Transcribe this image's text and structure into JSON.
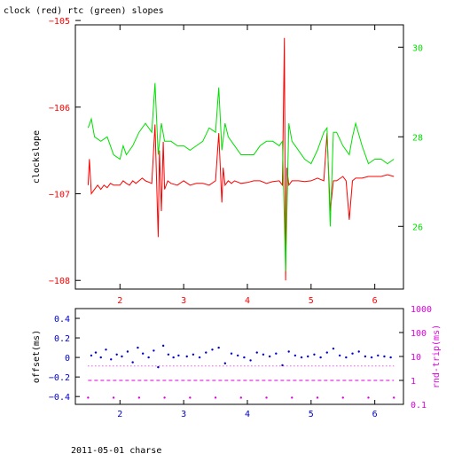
{
  "page": {
    "title": "clock (red) rtc (green) slopes",
    "footer": "2011-05-01 charse"
  },
  "colors": {
    "red": "#ff0000",
    "green": "#00e000",
    "blue": "#0000cc",
    "magenta": "#e000e0",
    "axis": "#000000"
  },
  "chart_data": [
    {
      "type": "line",
      "title": "clock (red) rtc (green) slopes",
      "ylabel": "clockslope",
      "xlim": [
        1.3,
        6.45
      ],
      "ylim": [
        -108.1,
        -105.05
      ],
      "y2lim": [
        24.6,
        30.5
      ],
      "x_ticks": [
        2,
        3,
        4,
        5,
        6
      ],
      "y_ticks": [
        -105,
        -106,
        -107,
        -108
      ],
      "y2_ticks": [
        30,
        28,
        26
      ],
      "grid": false,
      "series": [
        {
          "name": "clock",
          "axis": "left",
          "x": [
            1.5,
            1.52,
            1.55,
            1.6,
            1.65,
            1.7,
            1.75,
            1.8,
            1.85,
            1.9,
            2.0,
            2.05,
            2.1,
            2.15,
            2.2,
            2.25,
            2.3,
            2.35,
            2.4,
            2.5,
            2.55,
            2.6,
            2.62,
            2.65,
            2.68,
            2.7,
            2.75,
            2.8,
            2.9,
            3.0,
            3.1,
            3.2,
            3.3,
            3.4,
            3.5,
            3.55,
            3.6,
            3.62,
            3.65,
            3.7,
            3.75,
            3.8,
            3.9,
            4.0,
            4.1,
            4.2,
            4.3,
            4.4,
            4.5,
            4.55,
            4.58,
            4.6,
            4.62,
            4.65,
            4.7,
            4.8,
            4.9,
            5.0,
            5.1,
            5.2,
            5.25,
            5.3,
            5.35,
            5.4,
            5.5,
            5.55,
            5.6,
            5.65,
            5.7,
            5.8,
            5.9,
            6.0,
            6.1,
            6.2,
            6.3
          ],
          "y": [
            -106.9,
            -106.6,
            -107.0,
            -106.95,
            -106.9,
            -106.95,
            -106.9,
            -106.93,
            -106.88,
            -106.9,
            -106.9,
            -106.85,
            -106.88,
            -106.9,
            -106.85,
            -106.88,
            -106.85,
            -106.82,
            -106.85,
            -106.88,
            -106.2,
            -107.5,
            -106.5,
            -107.2,
            -106.4,
            -106.95,
            -106.85,
            -106.88,
            -106.9,
            -106.85,
            -106.9,
            -106.88,
            -106.88,
            -106.9,
            -106.85,
            -106.3,
            -107.1,
            -106.7,
            -106.9,
            -106.85,
            -106.88,
            -106.85,
            -106.88,
            -106.87,
            -106.85,
            -106.85,
            -106.88,
            -106.86,
            -106.85,
            -106.9,
            -105.2,
            -108.0,
            -106.7,
            -106.9,
            -106.85,
            -106.85,
            -106.86,
            -106.85,
            -106.82,
            -106.85,
            -106.3,
            -107.2,
            -106.85,
            -106.85,
            -106.8,
            -106.85,
            -107.3,
            -106.85,
            -106.82,
            -106.82,
            -106.8,
            -106.8,
            -106.8,
            -106.78,
            -106.8
          ],
          "color": "#ff0000"
        },
        {
          "name": "rtc",
          "axis": "right",
          "x": [
            1.5,
            1.55,
            1.6,
            1.7,
            1.8,
            1.9,
            2.0,
            2.05,
            2.1,
            2.2,
            2.3,
            2.4,
            2.5,
            2.55,
            2.6,
            2.65,
            2.7,
            2.8,
            2.9,
            3.0,
            3.1,
            3.2,
            3.3,
            3.4,
            3.5,
            3.55,
            3.6,
            3.65,
            3.7,
            3.8,
            3.9,
            4.0,
            4.1,
            4.2,
            4.3,
            4.4,
            4.5,
            4.55,
            4.6,
            4.65,
            4.7,
            4.8,
            4.9,
            5.0,
            5.1,
            5.2,
            5.25,
            5.3,
            5.35,
            5.4,
            5.5,
            5.55,
            5.6,
            5.65,
            5.7,
            5.8,
            5.9,
            6.0,
            6.1,
            6.2,
            6.3
          ],
          "y": [
            28.2,
            28.4,
            28.0,
            27.9,
            28.0,
            27.6,
            27.5,
            27.8,
            27.6,
            27.8,
            28.1,
            28.3,
            28.1,
            29.2,
            27.6,
            28.3,
            27.9,
            27.9,
            27.8,
            27.8,
            27.7,
            27.8,
            27.9,
            28.2,
            28.1,
            29.1,
            27.7,
            28.3,
            28.0,
            27.8,
            27.6,
            27.6,
            27.6,
            27.8,
            27.9,
            27.9,
            27.8,
            27.9,
            25.0,
            28.3,
            27.9,
            27.7,
            27.5,
            27.4,
            27.7,
            28.1,
            28.2,
            26.0,
            28.1,
            28.1,
            27.8,
            27.7,
            27.6,
            28.0,
            28.3,
            27.8,
            27.4,
            27.5,
            27.5,
            27.4,
            27.5
          ],
          "color": "#00e000"
        }
      ]
    },
    {
      "type": "scatter",
      "ylabel": "offset(ms)",
      "y2label": "rnd-trip(ms)",
      "xlim": [
        1.3,
        6.45
      ],
      "ylim": [
        -0.48,
        0.5
      ],
      "y2_log": true,
      "y2lim": [
        0.1,
        1000
      ],
      "x_ticks": [
        2,
        3,
        4,
        5,
        6
      ],
      "y_ticks": [
        0.4,
        0.2,
        0,
        -0.2,
        -0.4
      ],
      "y_tick_labels": [
        "0.4",
        "0.2",
        "0",
        "−0.2",
        "−0.4"
      ],
      "y2_ticks": [
        1000,
        100,
        10,
        1,
        0.1
      ],
      "grid": false,
      "series": [
        {
          "name": "offset",
          "axis": "left",
          "color": "#0000cc",
          "x": [
            1.55,
            1.62,
            1.7,
            1.78,
            1.86,
            1.95,
            2.03,
            2.12,
            2.2,
            2.28,
            2.36,
            2.45,
            2.53,
            2.6,
            2.68,
            2.76,
            2.84,
            2.92,
            3.05,
            3.15,
            3.25,
            3.35,
            3.45,
            3.55,
            3.65,
            3.75,
            3.85,
            3.95,
            4.05,
            4.15,
            4.25,
            4.35,
            4.45,
            4.55,
            4.65,
            4.75,
            4.85,
            4.95,
            5.05,
            5.15,
            5.25,
            5.35,
            5.45,
            5.55,
            5.65,
            5.75,
            5.85,
            5.95,
            6.05,
            6.15,
            6.25
          ],
          "y": [
            0.02,
            0.05,
            0.0,
            0.08,
            -0.02,
            0.03,
            0.01,
            0.06,
            -0.05,
            0.1,
            0.04,
            0.0,
            0.07,
            -0.1,
            0.12,
            0.03,
            0.0,
            0.02,
            0.01,
            0.03,
            0.0,
            0.05,
            0.08,
            0.1,
            -0.06,
            0.04,
            0.02,
            0.0,
            -0.03,
            0.05,
            0.03,
            0.01,
            0.04,
            -0.08,
            0.06,
            0.02,
            0.0,
            0.01,
            0.03,
            0.0,
            0.05,
            0.09,
            0.02,
            0.0,
            0.04,
            0.06,
            0.01,
            0.0,
            0.02,
            0.01,
            0.0
          ]
        },
        {
          "name": "rnd-trip",
          "axis": "right",
          "color": "#e000e0",
          "x": [
            1.5,
            1.9,
            2.3,
            2.7,
            3.1,
            3.5,
            3.9,
            4.3,
            4.7,
            5.1,
            5.5,
            5.9,
            6.3
          ],
          "y": [
            0.19,
            0.19,
            0.19,
            0.19,
            0.19,
            0.19,
            0.19,
            0.19,
            0.19,
            0.19,
            0.19,
            0.19,
            0.19
          ],
          "y_band_2": 1.0,
          "y_band_3": 4.0
        }
      ]
    }
  ]
}
